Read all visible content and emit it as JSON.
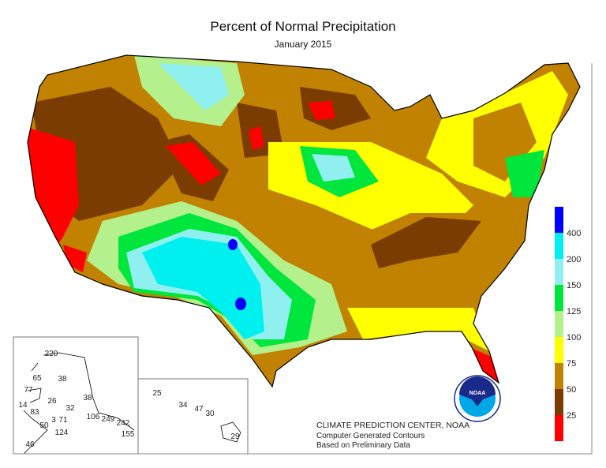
{
  "title": "Percent of Normal Precipitation",
  "subtitle": "January 2015",
  "legend": [
    {
      "label": "400",
      "color": "#0000ff"
    },
    {
      "label": "200",
      "color": "#00f0f0"
    },
    {
      "label": "150",
      "color": "#90f0f0"
    },
    {
      "label": "125",
      "color": "#00e63c"
    },
    {
      "label": "100",
      "color": "#b4f08c"
    },
    {
      "label": "75",
      "color": "#ffff00"
    },
    {
      "label": "50",
      "color": "#c08200"
    },
    {
      "label": "25",
      "color": "#7a3c00"
    },
    {
      "label": "",
      "color": "#ff0000"
    }
  ],
  "alaska_values": [
    "220",
    "65",
    "38",
    "77",
    "26",
    "14",
    "38",
    "83",
    "32",
    "106",
    "249",
    "242",
    "50",
    "3",
    "71",
    "124",
    "155",
    "46"
  ],
  "hawaii_values": [
    "25",
    "34",
    "47",
    "30",
    "29"
  ],
  "credits": {
    "line1": "CLIMATE PREDICTION CENTER, NOAA",
    "line2": "Computer Generated Contours",
    "line3": "Based on Preliminary Data"
  },
  "logo_text": "NOAA"
}
